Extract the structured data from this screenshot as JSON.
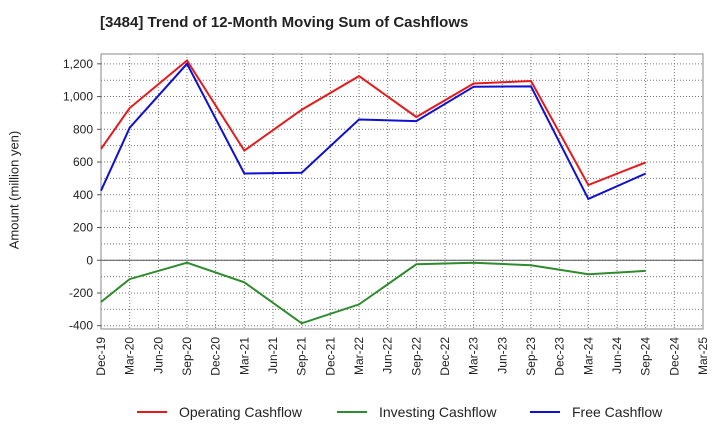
{
  "chart_data": {
    "type": "line",
    "title": "[3484]  Trend of 12-Month Moving Sum of Cashflows",
    "xlabel": "",
    "ylabel": "Amount (million yen)",
    "ylim": [
      -420,
      1260
    ],
    "yticks": [
      -400,
      -200,
      0,
      200,
      400,
      600,
      800,
      1000,
      1200
    ],
    "ytick_labels": [
      "-400",
      "-200",
      "0",
      "200",
      "400",
      "600",
      "800",
      "1,000",
      "1,200"
    ],
    "categories": [
      "Dec-19",
      "Mar-20",
      "Jun-20",
      "Sep-20",
      "Dec-20",
      "Mar-21",
      "Jun-21",
      "Sep-21",
      "Dec-21",
      "Mar-22",
      "Jun-22",
      "Sep-22",
      "Dec-22",
      "Mar-23",
      "Jun-23",
      "Sep-23",
      "Dec-23",
      "Mar-24",
      "Jun-24",
      "Sep-24",
      "Dec-24",
      "Mar-25"
    ],
    "grid": true,
    "legend_position": "bottom",
    "series": [
      {
        "name": "Operating Cashflow",
        "color": "#e41a1c",
        "values": [
          680,
          930,
          null,
          1220,
          null,
          670,
          null,
          920,
          null,
          1125,
          null,
          875,
          null,
          1080,
          null,
          1095,
          null,
          460,
          null,
          598,
          null,
          null
        ]
      },
      {
        "name": "Investing Cashflow",
        "color": "#2e8b2e",
        "values": [
          -255,
          -115,
          null,
          -15,
          null,
          -135,
          null,
          -385,
          null,
          -270,
          null,
          -25,
          null,
          -15,
          null,
          -30,
          null,
          -85,
          null,
          -65,
          null,
          null
        ]
      },
      {
        "name": "Free Cashflow",
        "color": "#1010d0",
        "values": [
          425,
          810,
          null,
          1200,
          null,
          530,
          null,
          535,
          null,
          860,
          null,
          850,
          null,
          1060,
          null,
          1062,
          null,
          375,
          null,
          530,
          null,
          null
        ]
      }
    ]
  }
}
